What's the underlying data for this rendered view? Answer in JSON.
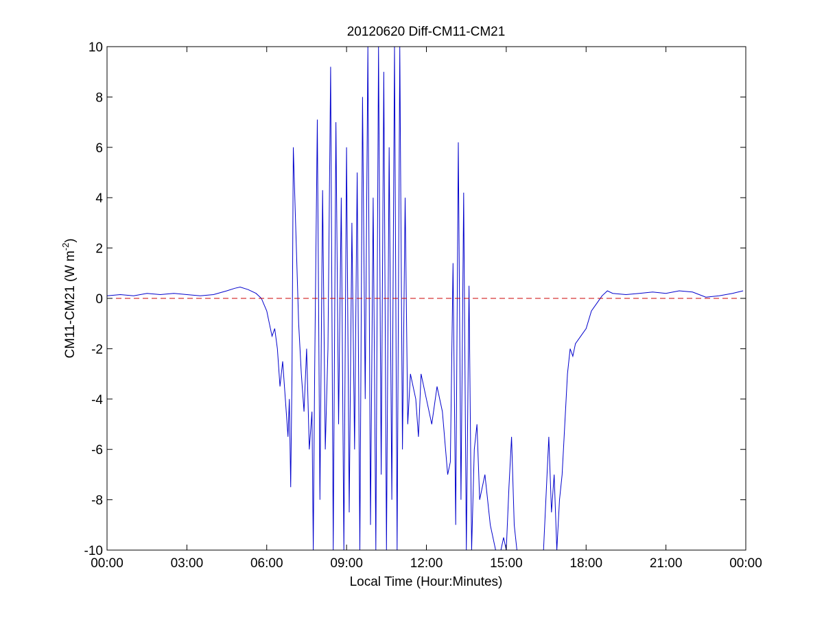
{
  "chart_data": {
    "type": "line",
    "title": "20120620 Diff-CM11-CM21",
    "xlabel": "Local Time (Hour:Minutes)",
    "ylabel": {
      "main": "CM11-CM21 (W m",
      "superscript": "-2",
      "close": ")"
    },
    "xlim_hours": [
      0,
      24
    ],
    "ylim": [
      -10,
      10
    ],
    "x_tick_hours": [
      0,
      3,
      6,
      9,
      12,
      15,
      18,
      21,
      24
    ],
    "x_tick_labels": [
      "00:00",
      "03:00",
      "06:00",
      "09:00",
      "12:00",
      "15:00",
      "18:00",
      "21:00",
      "00:00"
    ],
    "y_ticks": [
      -10,
      -8,
      -6,
      -4,
      -2,
      0,
      2,
      4,
      6,
      8,
      10
    ],
    "y_tick_labels": [
      "-10",
      "-8",
      "-6",
      "-4",
      "-2",
      "0",
      "2",
      "4",
      "6",
      "8",
      "10"
    ],
    "grid": false,
    "series": [
      {
        "color": "#0000cc",
        "style": "solid",
        "x_hours": [
          0.0,
          0.5,
          1.0,
          1.5,
          2.0,
          2.5,
          3.0,
          3.5,
          4.0,
          4.5,
          4.8,
          5.0,
          5.3,
          5.6,
          5.8,
          6.0,
          6.1,
          6.2,
          6.3,
          6.4,
          6.5,
          6.6,
          6.7,
          6.8,
          6.85,
          6.9,
          6.95,
          7.0,
          7.1,
          7.2,
          7.3,
          7.4,
          7.5,
          7.6,
          7.7,
          7.75,
          7.8,
          7.9,
          8.0,
          8.1,
          8.2,
          8.3,
          8.4,
          8.5,
          8.6,
          8.7,
          8.8,
          8.9,
          9.0,
          9.1,
          9.2,
          9.3,
          9.4,
          9.5,
          9.6,
          9.7,
          9.8,
          9.9,
          10.0,
          10.1,
          10.2,
          10.3,
          10.4,
          10.5,
          10.6,
          10.7,
          10.8,
          10.9,
          11.0,
          11.1,
          11.2,
          11.3,
          11.4,
          11.5,
          11.6,
          11.7,
          11.8,
          12.0,
          12.2,
          12.4,
          12.6,
          12.8,
          12.9,
          13.0,
          13.1,
          13.2,
          13.3,
          13.4,
          13.5,
          13.6,
          13.7,
          13.8,
          13.9,
          14.0,
          14.2,
          14.4,
          14.6,
          14.8,
          14.9,
          15.0,
          15.1,
          15.2,
          15.3,
          15.4,
          15.6,
          16.0,
          16.4,
          16.6,
          16.7,
          16.8,
          16.9,
          17.0,
          17.1,
          17.2,
          17.3,
          17.4,
          17.5,
          17.6,
          17.8,
          18.0,
          18.2,
          18.4,
          18.6,
          18.8,
          19.0,
          19.5,
          20.0,
          20.5,
          21.0,
          21.5,
          22.0,
          22.5,
          23.0,
          23.5,
          23.9
        ],
        "y": [
          0.1,
          0.15,
          0.1,
          0.2,
          0.15,
          0.2,
          0.15,
          0.1,
          0.15,
          0.3,
          0.4,
          0.45,
          0.35,
          0.2,
          0.0,
          -0.5,
          -1.0,
          -1.5,
          -1.2,
          -2.0,
          -3.5,
          -2.5,
          -4.0,
          -5.5,
          -4.0,
          -7.5,
          -3.0,
          6.0,
          2.5,
          -1.0,
          -3.0,
          -4.5,
          -2.0,
          -6.0,
          -4.5,
          -10.0,
          -3.0,
          7.1,
          -8.0,
          4.3,
          -6.0,
          -2.0,
          9.2,
          -10.0,
          7.0,
          -5.0,
          4.0,
          -10.0,
          6.0,
          -8.5,
          3.0,
          -6.0,
          5.0,
          -10.0,
          8.0,
          -4.0,
          10.0,
          -9.0,
          4.0,
          -10.0,
          10.0,
          -7.0,
          9.0,
          -10.0,
          6.0,
          -8.0,
          10.0,
          -10.0,
          10.0,
          -6.0,
          4.0,
          -5.0,
          -3.0,
          -3.5,
          -4.0,
          -5.5,
          -3.0,
          -4.0,
          -5.0,
          -3.5,
          -4.5,
          -7.0,
          -6.5,
          1.4,
          -9.0,
          6.2,
          -8.0,
          4.2,
          -10.0,
          0.5,
          -10.0,
          -6.0,
          -5.0,
          -8.0,
          -7.0,
          -9.0,
          -10.0,
          -10.0,
          -9.5,
          -10.0,
          -7.5,
          -5.5,
          -9.0,
          -10.0,
          -10.0,
          -10.0,
          -10.0,
          -5.5,
          -8.5,
          -7.0,
          -10.0,
          -8.0,
          -7.0,
          -5.0,
          -3.0,
          -2.0,
          -2.3,
          -1.8,
          -1.5,
          -1.2,
          -0.5,
          -0.2,
          0.1,
          0.3,
          0.2,
          0.15,
          0.2,
          0.25,
          0.2,
          0.3,
          0.25,
          0.05,
          0.1,
          0.2,
          0.3
        ]
      },
      {
        "color": "#cc0000",
        "style": "dashed",
        "x_hours": [
          0,
          24
        ],
        "y": [
          0,
          0
        ]
      }
    ]
  }
}
